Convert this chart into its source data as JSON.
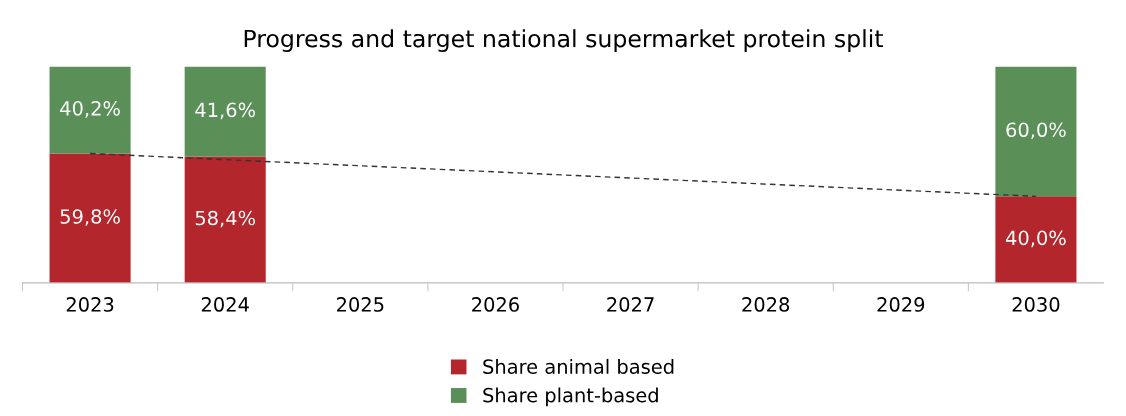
{
  "chart_data": {
    "type": "bar",
    "title": "Progress and target national supermarket protein split",
    "categories": [
      "2023",
      "2024",
      "2025",
      "2026",
      "2027",
      "2028",
      "2029",
      "2030"
    ],
    "stacked": true,
    "ylim": [
      0,
      100
    ],
    "tick_labels": "x",
    "grid": false,
    "legend": "bottom",
    "series": [
      {
        "name": "Share animal based",
        "color": "#b3262c",
        "values": [
          59.8,
          58.4,
          null,
          null,
          null,
          null,
          null,
          40.0
        ],
        "value_labels": [
          "59,8%",
          "58,4%",
          null,
          null,
          null,
          null,
          null,
          "40,0%"
        ]
      },
      {
        "name": "Share plant-based",
        "color": "#5b8f58",
        "values": [
          40.2,
          41.6,
          null,
          null,
          null,
          null,
          null,
          60.0
        ],
        "value_labels": [
          "40,2%",
          "41,6%",
          null,
          null,
          null,
          null,
          null,
          "60,0%"
        ]
      },
      {
        "type": "line",
        "values": [
          59.8,
          null,
          null,
          null,
          null,
          null,
          null,
          40.0
        ],
        "color": "#333333",
        "line_style": "dashed",
        "marker": "none"
      }
    ]
  }
}
